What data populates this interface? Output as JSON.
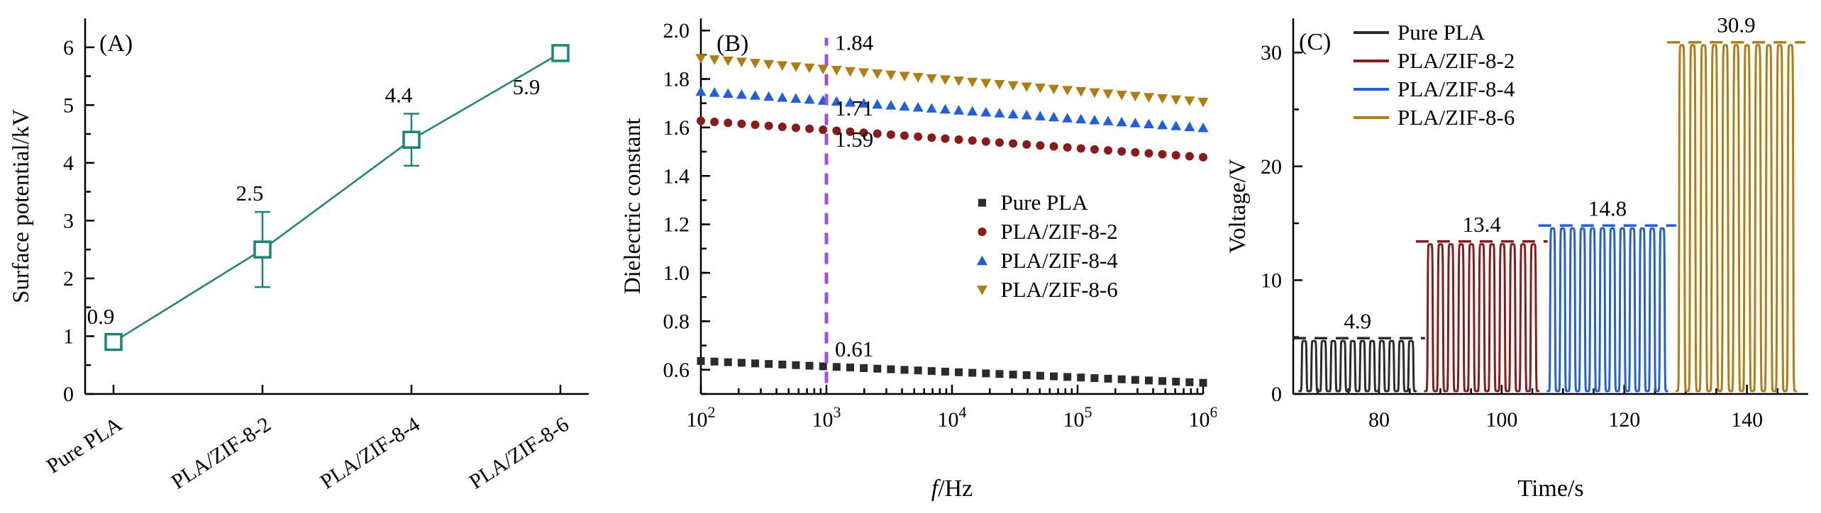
{
  "figure": {
    "background": "#ffffff",
    "text_color": "#000000"
  },
  "chart_data": [
    {
      "type": "scatter",
      "panel_label": "(A)",
      "ylabel": "Surface potential/kV",
      "categories": [
        "Pure PLA",
        "PLA/ZIF-8-2",
        "PLA/ZIF-8-4",
        "PLA/ZIF-8-6"
      ],
      "values": [
        0.9,
        2.5,
        4.4,
        5.9
      ],
      "errors": [
        0.12,
        0.65,
        0.45,
        0.12
      ],
      "data_labels": [
        "0.9",
        "2.5",
        "4.4",
        "5.9"
      ],
      "ylim": [
        0,
        6.5
      ],
      "yticks": [
        0,
        1,
        2,
        3,
        4,
        5,
        6
      ],
      "color": "#17867a",
      "marker": "open-square",
      "grid": false
    },
    {
      "type": "scatter",
      "panel_label": "(B)",
      "xlabel": "f/Hz",
      "ylabel": "Dielectric constant",
      "xscale": "log",
      "xlim_exp": [
        2,
        6
      ],
      "ylim": [
        0.5,
        2.05
      ],
      "yticks": [
        0.6,
        0.8,
        1.0,
        1.2,
        1.4,
        1.6,
        1.8,
        2.0
      ],
      "series": [
        {
          "name": "Pure PLA",
          "marker": "square",
          "color": "#2b2b2b",
          "value_start": 0.636,
          "value_end": 0.546
        },
        {
          "name": "PLA/ZIF-8-2",
          "marker": "circle",
          "color": "#8b1a1a",
          "value_start": 1.627,
          "value_end": 1.477
        },
        {
          "name": "PLA/ZIF-8-4",
          "marker": "triangle-up",
          "color": "#1f5fe0",
          "value_start": 1.748,
          "value_end": 1.598
        },
        {
          "name": "PLA/ZIF-8-6",
          "marker": "triangle-down",
          "color": "#b07d10",
          "value_start": 1.885,
          "value_end": 1.705
        }
      ],
      "reference_line": {
        "x": 1000,
        "color": "#a24fe0",
        "style": "dashed",
        "value_bottom": 0.545,
        "value_top": 1.97
      },
      "annotations": [
        {
          "text": "1.84",
          "value": 1.92
        },
        {
          "text": "1.71",
          "value": 1.65
        },
        {
          "text": "1.59",
          "value": 1.52
        },
        {
          "text": "0.61",
          "value": 0.655
        }
      ],
      "legend_position": "middle-right",
      "grid": false
    },
    {
      "type": "line",
      "panel_label": "(C)",
      "xlabel": "Time/s",
      "ylabel": "Voltage/V",
      "xlim": [
        66,
        150
      ],
      "xticks": [
        80,
        100,
        120,
        140
      ],
      "ylim": [
        0,
        33
      ],
      "yticks": [
        0,
        10,
        20,
        30
      ],
      "series": [
        {
          "name": "Pure PLA",
          "color": "#2b2b2b",
          "peak": 4.9,
          "peak_label": "4.9",
          "t_start": 67,
          "t_end": 86,
          "cycles": 12
        },
        {
          "name": "PLA/ZIF-8-2",
          "color": "#8b1a1a",
          "peak": 13.4,
          "peak_label": "13.4",
          "t_start": 87.5,
          "t_end": 106,
          "cycles": 11
        },
        {
          "name": "PLA/ZIF-8-4",
          "color": "#1f5fe0",
          "peak": 14.8,
          "peak_label": "14.8",
          "t_start": 107.5,
          "t_end": 127,
          "cycles": 12
        },
        {
          "name": "PLA/ZIF-8-6",
          "color": "#b07d10",
          "peak": 30.9,
          "peak_label": "30.9",
          "t_start": 128.5,
          "t_end": 148,
          "cycles": 11
        }
      ],
      "legend_position": "top-left",
      "grid": false
    }
  ]
}
